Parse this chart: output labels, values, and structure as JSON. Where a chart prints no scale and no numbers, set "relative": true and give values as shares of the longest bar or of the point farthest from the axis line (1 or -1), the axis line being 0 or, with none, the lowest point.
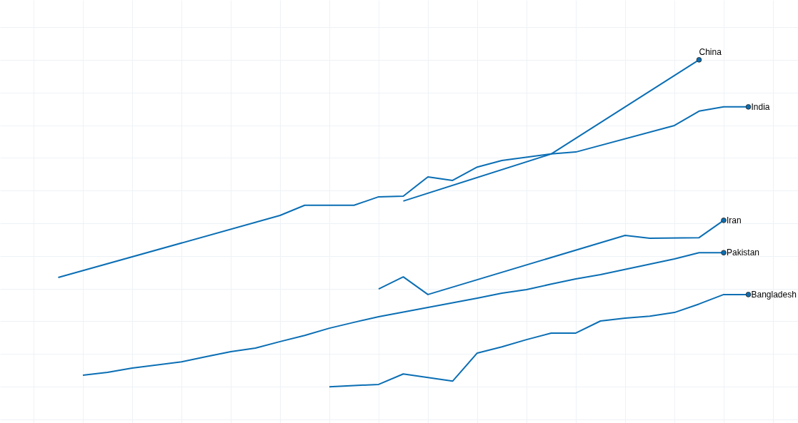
{
  "chart_data": {
    "type": "line",
    "relative": true,
    "grid": true,
    "categories": [
      null,
      null,
      null,
      null,
      null,
      null,
      null,
      null,
      null,
      null,
      null,
      null,
      null,
      null,
      null,
      null,
      null,
      null,
      null,
      null,
      null,
      null,
      null,
      null,
      null,
      null,
      null,
      null,
      null,
      null,
      null
    ],
    "series": [
      {
        "name": "China",
        "color": "#0a6eb4",
        "values": [
          null,
          null,
          null,
          null,
          null,
          null,
          null,
          null,
          null,
          null,
          null,
          null,
          null,
          null,
          null,
          0.568,
          null,
          null,
          null,
          null,
          null,
          0.712,
          null,
          null,
          null,
          null,
          null,
          1.0,
          null,
          null,
          null
        ]
      },
      {
        "name": "India",
        "color": "#0a6eb4",
        "values": [
          null,
          0.334,
          null,
          null,
          null,
          null,
          null,
          null,
          null,
          null,
          0.524,
          0.555,
          null,
          0.555,
          0.581,
          0.583,
          0.642,
          0.631,
          0.672,
          0.692,
          null,
          0.712,
          0.718,
          null,
          null,
          null,
          0.799,
          0.843,
          0.856,
          0.856,
          null
        ]
      },
      {
        "name": "Iran",
        "color": "#0a6eb4",
        "values": [
          null,
          null,
          null,
          null,
          null,
          null,
          null,
          null,
          null,
          null,
          null,
          null,
          null,
          null,
          0.299,
          0.336,
          0.282,
          null,
          null,
          null,
          null,
          null,
          null,
          null,
          0.463,
          0.454,
          null,
          0.456,
          0.509,
          null,
          null
        ]
      },
      {
        "name": "Pakistan",
        "color": "#0a6eb4",
        "values": [
          null,
          null,
          0.035,
          0.044,
          0.057,
          null,
          0.076,
          0.092,
          0.107,
          0.118,
          0.138,
          0.157,
          0.179,
          0.197,
          0.214,
          null,
          null,
          null,
          0.271,
          0.286,
          0.297,
          0.314,
          0.33,
          0.343,
          null,
          null,
          0.391,
          0.41,
          0.41,
          null,
          null
        ]
      },
      {
        "name": "Bangladesh",
        "color": "#0a6eb4",
        "values": [
          null,
          null,
          null,
          null,
          null,
          null,
          null,
          null,
          null,
          null,
          null,
          null,
          0.0,
          null,
          0.007,
          0.039,
          null,
          0.017,
          0.103,
          0.122,
          0.144,
          0.164,
          0.164,
          0.201,
          0.21,
          0.216,
          0.227,
          0.253,
          0.282,
          0.282,
          null
        ]
      }
    ]
  }
}
